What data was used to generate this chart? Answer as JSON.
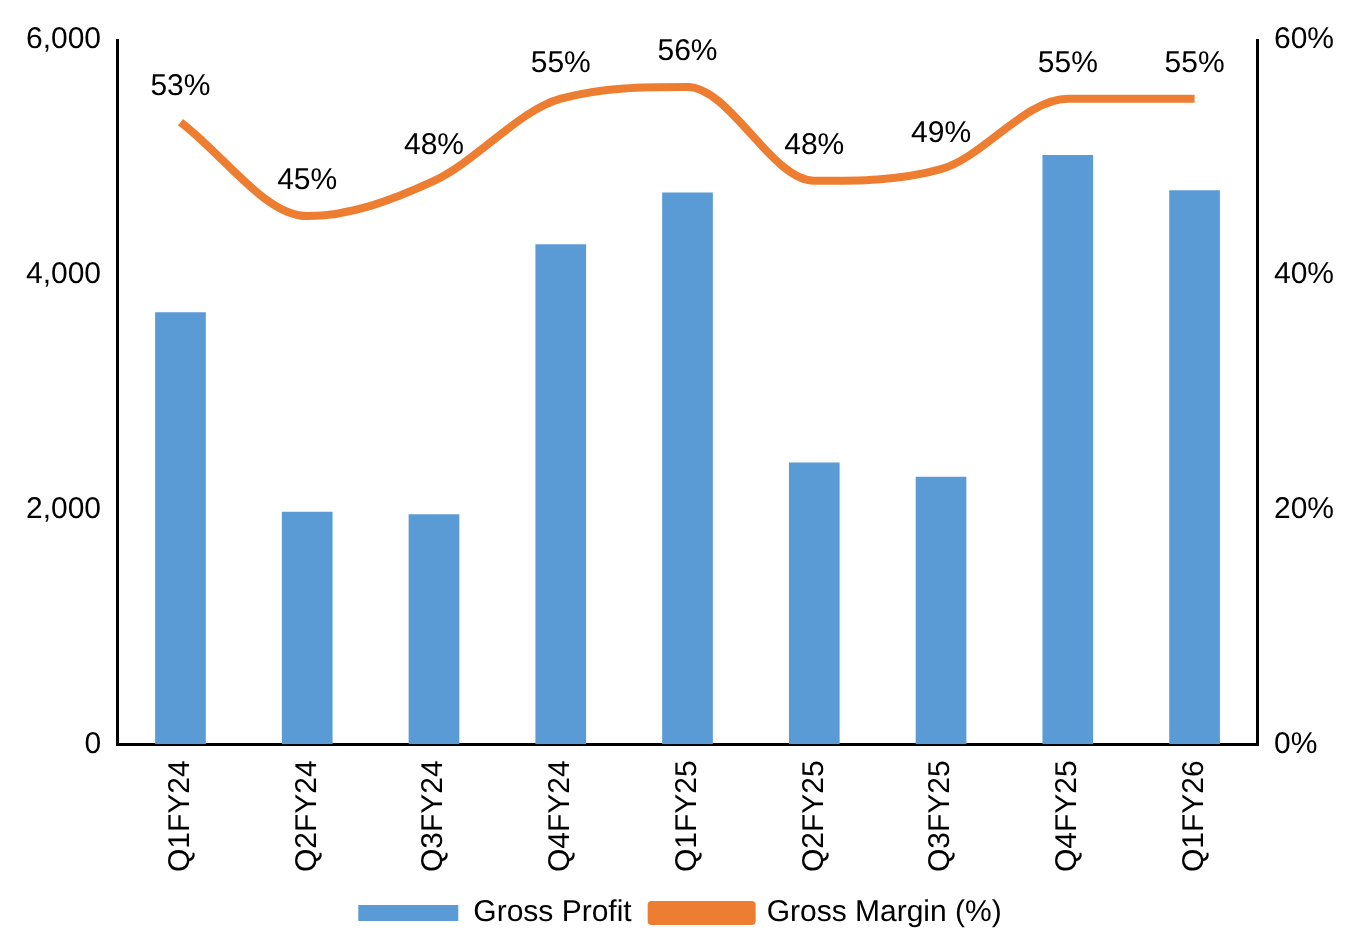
{
  "chart_data": {
    "type": "bar",
    "categories": [
      "Q1FY24",
      "Q2FY24",
      "Q3FY24",
      "Q4FY24",
      "Q1FY25",
      "Q2FY25",
      "Q3FY25",
      "Q4FY25",
      "Q1FY26"
    ],
    "series": [
      {
        "name": "Gross Profit",
        "color": "#5b9bd5",
        "values": [
          3680,
          1980,
          1960,
          4260,
          4700,
          2400,
          2280,
          5020,
          4720
        ]
      },
      {
        "name": "Gross Margin (%)",
        "type": "line",
        "axis": "y2",
        "color": "#ed7d31",
        "marker": "none",
        "values": [
          53,
          45,
          48,
          55,
          56,
          48,
          49,
          55,
          55
        ],
        "value_labels": [
          "53%",
          "45%",
          "48%",
          "55%",
          "56%",
          "48%",
          "49%",
          "55%",
          "55%"
        ]
      }
    ],
    "ylim": [
      0,
      6000
    ],
    "yticks": [
      0,
      {
        "value": 2000,
        "label": "2,000"
      },
      {
        "value": 4000,
        "label": "4,000"
      },
      {
        "value": 6000,
        "label": "6,000"
      }
    ],
    "y2lim": [
      0,
      60
    ],
    "y2ticks": [
      {
        "value": 0,
        "label": "0%"
      },
      {
        "value": 20,
        "label": "20%"
      },
      {
        "value": 40,
        "label": "40%"
      },
      {
        "value": 60,
        "label": "60%"
      }
    ],
    "grid": false,
    "legend": "bottom"
  }
}
